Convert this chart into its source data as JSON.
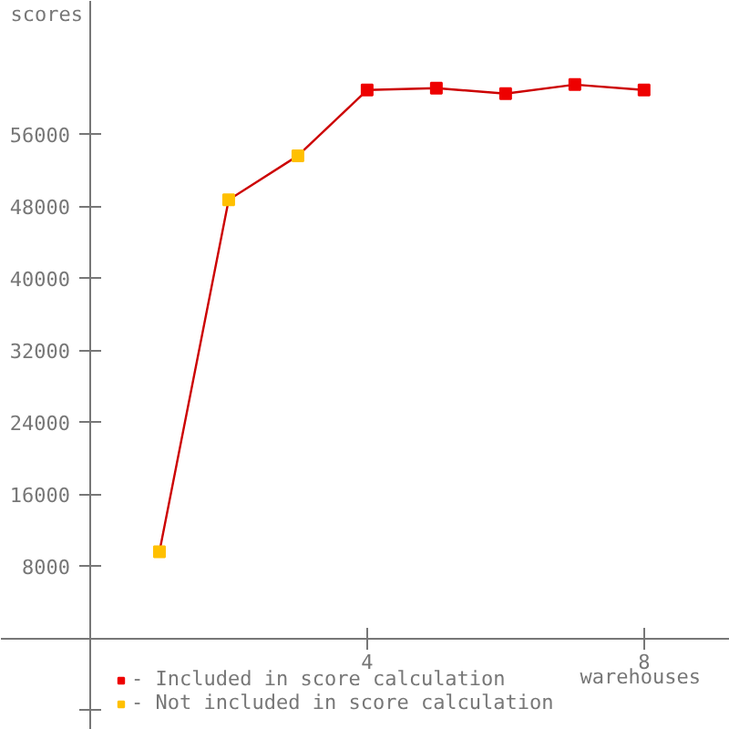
{
  "chart_data": {
    "type": "line",
    "xlabel": "warehouses",
    "ylabel": "scores",
    "x": [
      1,
      2,
      3,
      4,
      5,
      6,
      7,
      8
    ],
    "series": [
      {
        "color": "#cc0000",
        "values": [
          9600,
          48700,
          53600,
          60900,
          61100,
          60500,
          61500,
          60900
        ],
        "marker": "none"
      },
      {
        "type": "scatter",
        "name": "- Included in score calculation",
        "color": "#ee0000",
        "values": [
          null,
          null,
          null,
          60900,
          61100,
          60500,
          61500,
          60900
        ]
      },
      {
        "type": "scatter",
        "name": "- Not included in score calculation",
        "color": "#ffc000",
        "values": [
          9600,
          48700,
          53600,
          null,
          null,
          null,
          null,
          null
        ]
      }
    ],
    "xlim": [
      -1.29,
      9.24
    ],
    "ylim": [
      -10200,
      70800
    ],
    "xticks": [
      4,
      8
    ],
    "yticks": [
      {
        "value": -8000,
        "label": null
      },
      8000,
      16000,
      24000,
      32000,
      40000,
      48000,
      56000
    ],
    "marker": "square",
    "line_style": "solid",
    "grid": false,
    "legend": "bottom"
  }
}
